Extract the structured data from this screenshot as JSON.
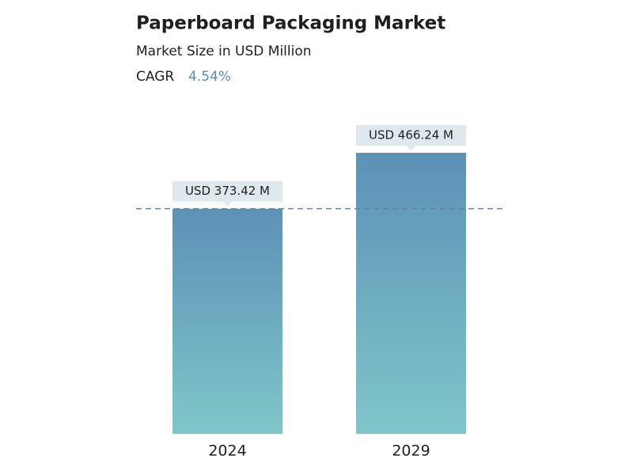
{
  "chart_data": {
    "type": "bar",
    "title": "Paperboard Packaging Market",
    "subtitle": "Market Size in USD Million",
    "cagr_label": "CAGR",
    "cagr_value": "4.54%",
    "categories": [
      "2024",
      "2029"
    ],
    "values": [
      373.42,
      466.24
    ],
    "value_labels": [
      "USD 373.42 M",
      "USD 466.24 M"
    ]
  }
}
